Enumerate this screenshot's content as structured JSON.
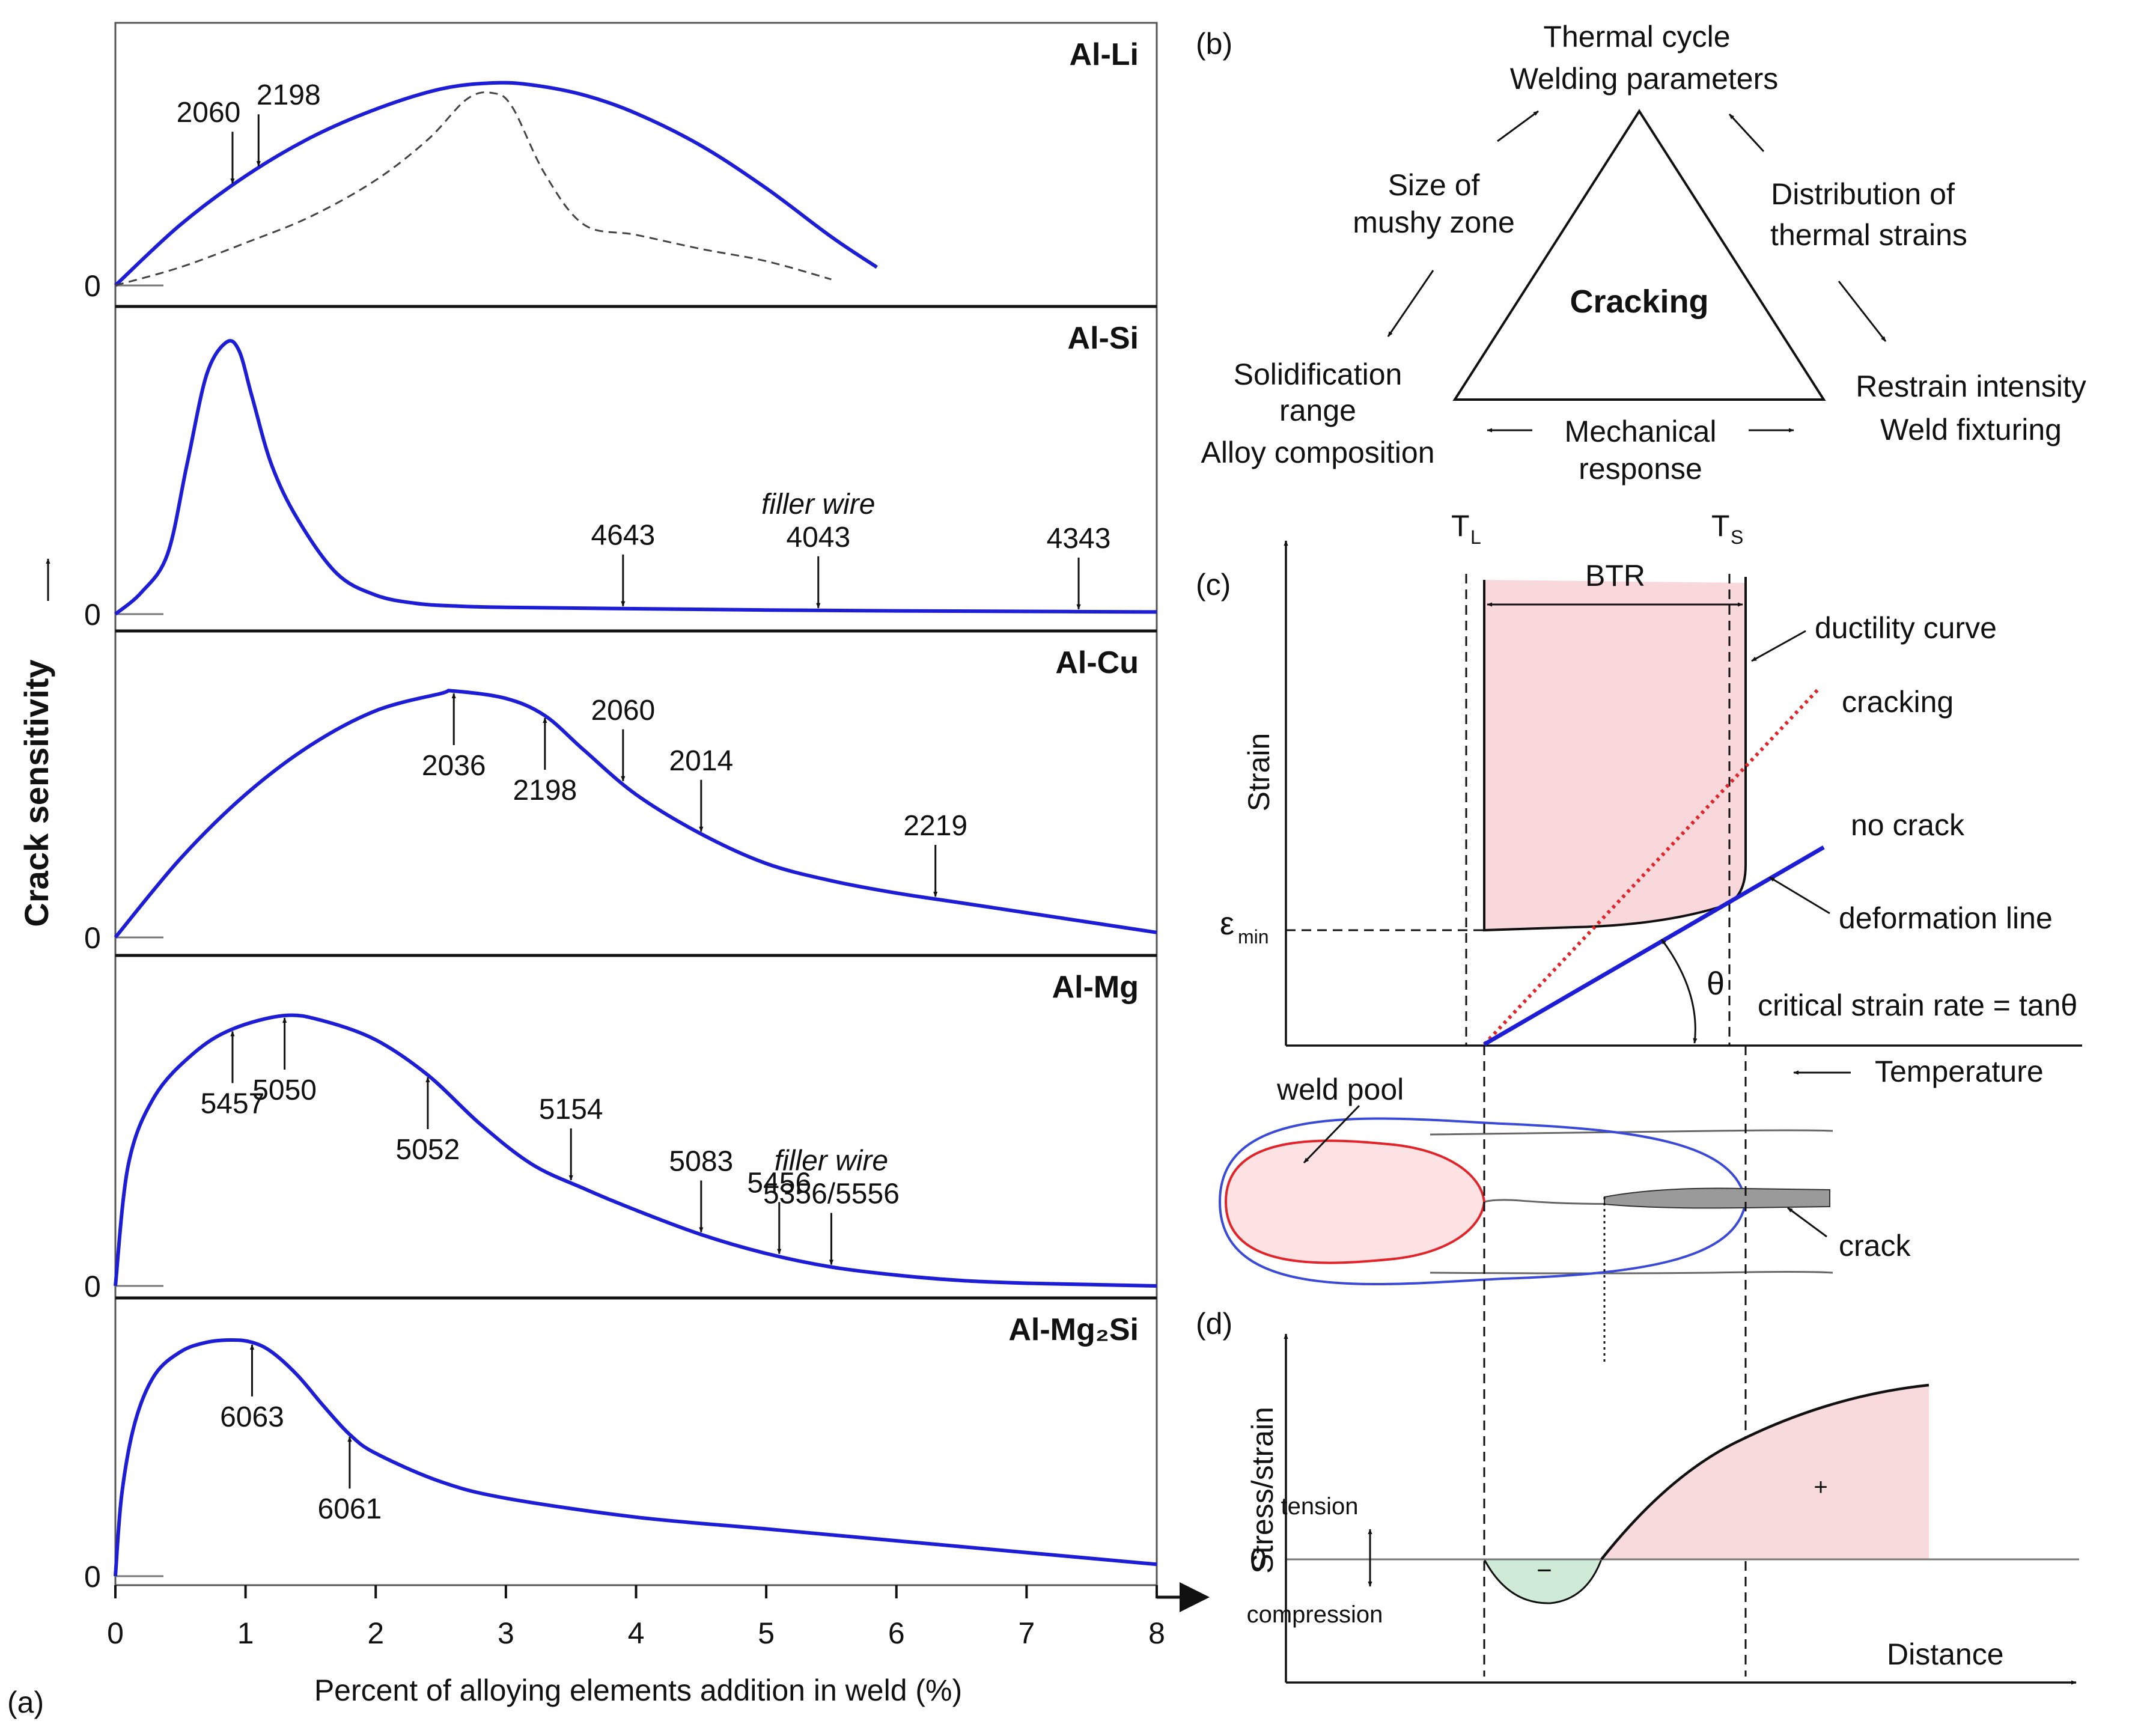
{
  "chart_data": [
    {
      "type": "line",
      "panel_label": "(a)",
      "xlabel": "Percent of alloying elements addition in weld (%)",
      "ylabel": "Crack sensitivity",
      "x_ticks": [
        0,
        1,
        2,
        3,
        4,
        5,
        6,
        7,
        8
      ],
      "xlim": [
        0,
        8
      ],
      "ylim": [
        0,
        1
      ],
      "zero_label": "0",
      "subplots": [
        {
          "title": "Al-Li",
          "series": [
            {
              "name": "curve",
              "style": "solid",
              "x": [
                0,
                0.5,
                1.0,
                1.5,
                2.0,
                2.5,
                2.9,
                3.2,
                3.6,
                4.0,
                4.5,
                5.0,
                5.5,
                5.85
              ],
              "y": [
                0,
                0.3,
                0.54,
                0.73,
                0.87,
                0.97,
                1.0,
                0.99,
                0.94,
                0.85,
                0.69,
                0.48,
                0.24,
                0.09
              ]
            },
            {
              "name": "dashed",
              "style": "dashed",
              "x": [
                0,
                0.5,
                1.0,
                1.5,
                2.0,
                2.4,
                2.7,
                2.9,
                3.05,
                3.3,
                3.6,
                4.0,
                4.5,
                5.0,
                5.5
              ],
              "y": [
                0,
                0.09,
                0.21,
                0.34,
                0.52,
                0.72,
                0.92,
                0.95,
                0.88,
                0.55,
                0.3,
                0.25,
                0.18,
                0.12,
                0.03
              ]
            }
          ],
          "annotations": [
            {
              "label": "2060",
              "x": 0.9
            },
            {
              "label": "2198",
              "x": 1.1
            }
          ]
        },
        {
          "title": "Al-Si",
          "series": [
            {
              "name": "curve",
              "style": "solid",
              "x": [
                0,
                0.2,
                0.4,
                0.55,
                0.7,
                0.85,
                0.95,
                1.05,
                1.2,
                1.4,
                1.7,
                2.0,
                2.3,
                2.6,
                3.0,
                4.0,
                5.0,
                6.0,
                7.0,
                8.0
              ],
              "y": [
                0,
                0.08,
                0.22,
                0.55,
                0.88,
                1.0,
                0.97,
                0.8,
                0.55,
                0.35,
                0.15,
                0.07,
                0.04,
                0.03,
                0.025,
                0.02,
                0.015,
                0.012,
                0.01,
                0.008
              ]
            }
          ],
          "annotations": [
            {
              "label": "4643",
              "x": 3.9
            },
            {
              "label": "4043",
              "x": 5.4,
              "note": "filler wire"
            },
            {
              "label": "4343",
              "x": 7.4
            }
          ]
        },
        {
          "title": "Al-Cu",
          "series": [
            {
              "name": "curve",
              "style": "solid",
              "x": [
                0,
                0.5,
                1.0,
                1.5,
                2.0,
                2.5,
                2.6,
                3.0,
                3.3,
                3.6,
                4.0,
                4.5,
                5.0,
                5.5,
                6.0,
                6.5,
                7.0,
                7.5,
                8.0
              ],
              "y": [
                0,
                0.32,
                0.58,
                0.78,
                0.92,
                0.99,
                1.0,
                0.97,
                0.9,
                0.76,
                0.58,
                0.42,
                0.3,
                0.23,
                0.18,
                0.14,
                0.1,
                0.06,
                0.02
              ]
            }
          ],
          "annotations": [
            {
              "label": "2036",
              "x": 2.6
            },
            {
              "label": "2198",
              "x": 3.3
            },
            {
              "label": "2060",
              "x": 3.9
            },
            {
              "label": "2014",
              "x": 4.5
            },
            {
              "label": "2219",
              "x": 6.3
            }
          ]
        },
        {
          "title": "Al-Mg",
          "series": [
            {
              "name": "curve",
              "style": "solid",
              "x": [
                0,
                0.1,
                0.3,
                0.6,
                0.9,
                1.3,
                1.6,
                2.0,
                2.4,
                2.8,
                3.2,
                3.6,
                4.0,
                4.5,
                5.0,
                5.5,
                6.0,
                6.5,
                7.0,
                7.5,
                8.0
              ],
              "y": [
                0,
                0.45,
                0.7,
                0.86,
                0.95,
                1.0,
                0.98,
                0.91,
                0.78,
                0.6,
                0.45,
                0.36,
                0.28,
                0.19,
                0.12,
                0.07,
                0.04,
                0.02,
                0.01,
                0.005,
                0.0
              ]
            }
          ],
          "annotations": [
            {
              "label": "5457",
              "x": 0.9
            },
            {
              "label": "5050",
              "x": 1.3
            },
            {
              "label": "5052",
              "x": 2.4
            },
            {
              "label": "5154",
              "x": 3.5
            },
            {
              "label": "5083",
              "x": 4.5
            },
            {
              "label": "5456",
              "x": 5.1
            },
            {
              "label": "5356/5556",
              "x": 5.5,
              "note": "filler wire"
            }
          ]
        },
        {
          "title": "Al-Mg₂Si",
          "series": [
            {
              "name": "curve",
              "style": "solid",
              "x": [
                0,
                0.05,
                0.15,
                0.3,
                0.5,
                0.7,
                0.9,
                1.05,
                1.2,
                1.4,
                1.6,
                1.8,
                2.0,
                2.5,
                3.0,
                4.0,
                5.0,
                6.0,
                7.0,
                8.0
              ],
              "y": [
                0,
                0.35,
                0.65,
                0.85,
                0.95,
                0.99,
                1.0,
                0.99,
                0.95,
                0.85,
                0.72,
                0.6,
                0.52,
                0.4,
                0.33,
                0.25,
                0.2,
                0.15,
                0.1,
                0.05
              ]
            }
          ],
          "annotations": [
            {
              "label": "6063",
              "x": 1.05
            },
            {
              "label": "6061",
              "x": 1.8
            }
          ]
        }
      ]
    },
    {
      "type": "diagram",
      "panel_label": "(b)",
      "center": "Cracking",
      "vertices": {
        "top": [
          "Thermal cycle",
          "Welding parameters"
        ],
        "left": [
          "Solidification",
          "range",
          "Alloy composition"
        ],
        "right": [
          "Restrain intensity",
          "Weld fixturing"
        ]
      },
      "edges": {
        "left": [
          "Size of",
          "mushy zone"
        ],
        "right": [
          "Distribution of",
          "thermal strains"
        ],
        "bottom": [
          "Mechanical",
          "response"
        ]
      }
    },
    {
      "type": "line",
      "panel_label": "(c)",
      "ylabel": "Strain",
      "xlabel": "Temperature",
      "TL": "T",
      "TL_sub": "L",
      "TS": "T",
      "TS_sub": "S",
      "btr": "BTR",
      "eps": "ε",
      "eps_sub": "min",
      "theta": "θ",
      "labels": {
        "ductility": "ductility curve",
        "cracking": "cracking",
        "no_crack": "no crack",
        "deformation": "deformation line",
        "critical": "critical strain rate = tanθ"
      },
      "weld": {
        "pool": "weld pool",
        "crack": "crack"
      }
    },
    {
      "type": "line",
      "panel_label": "(d)",
      "ylabel": "Stress/strain",
      "xlabel": "Distance",
      "zero": "0",
      "tension": "tension",
      "compression": "compression",
      "minus": "−",
      "plus": "+"
    }
  ]
}
